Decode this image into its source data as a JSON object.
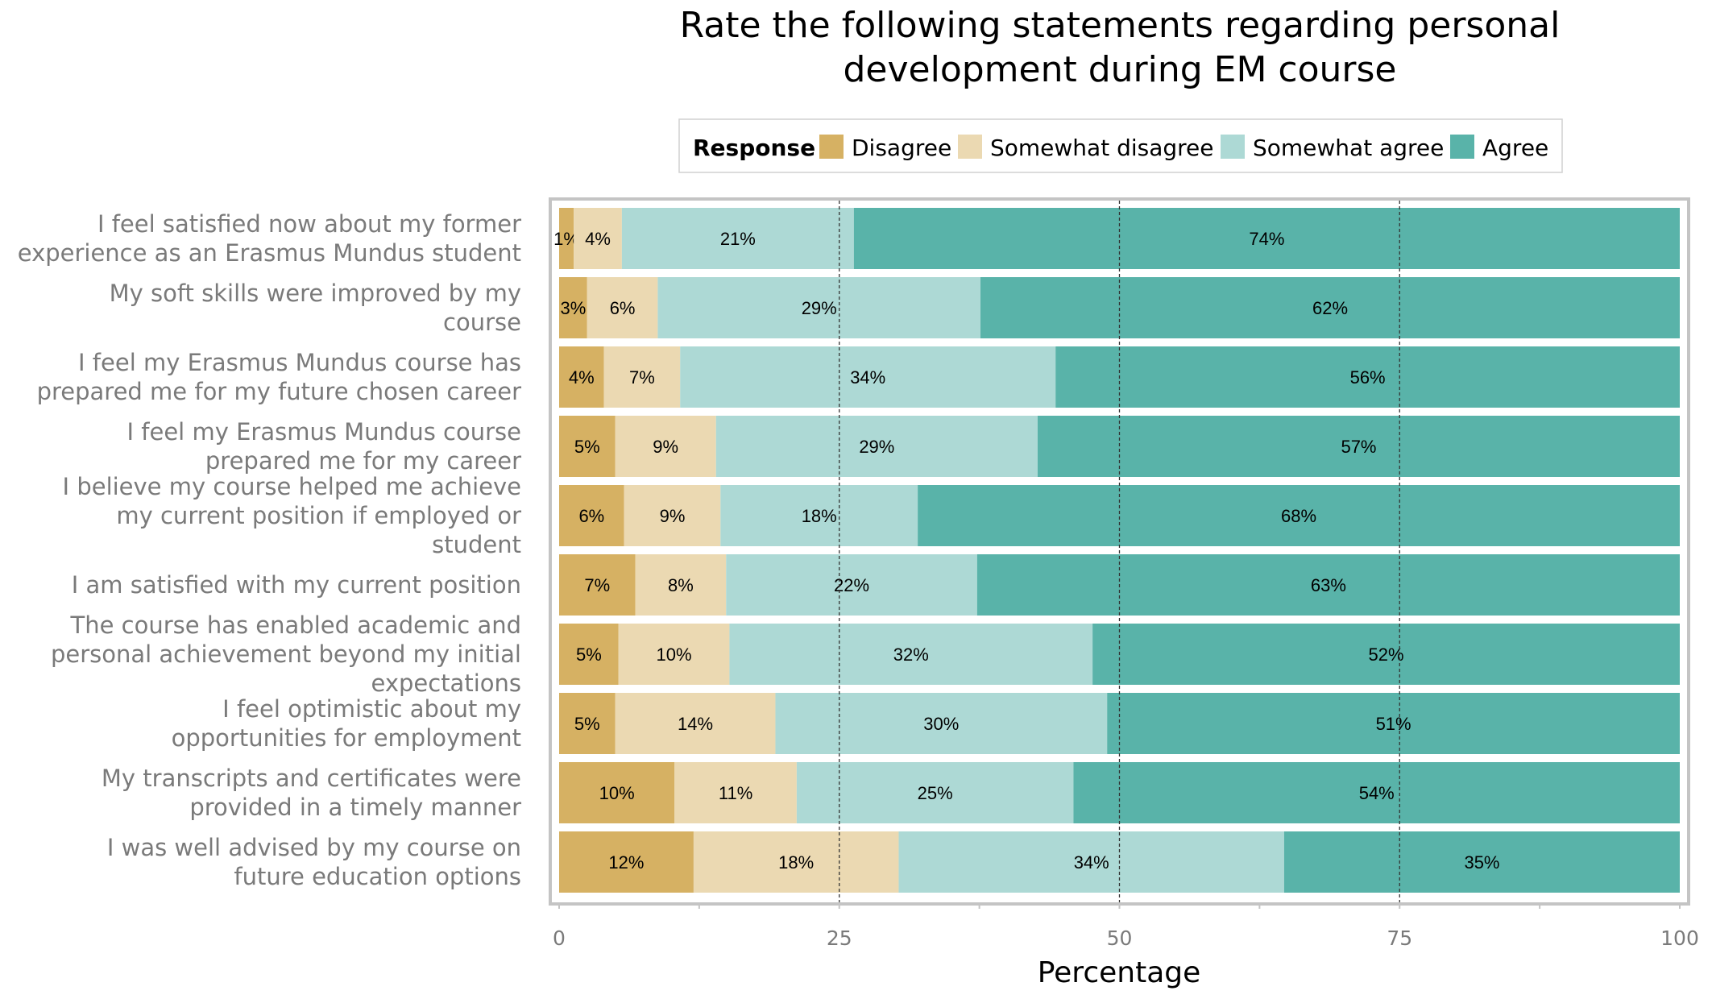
{
  "chart_data": {
    "type": "bar",
    "orientation": "horizontal",
    "stacked": true,
    "title": "Rate the following statements regarding personal development during EM course",
    "title_lines": [
      "Rate the following statements regarding personal",
      "development during EM course"
    ],
    "xlabel": "Percentage",
    "ylabel": "",
    "xlim": [
      0,
      100
    ],
    "xticks": [
      0,
      25,
      50,
      75,
      100
    ],
    "xtick_labels": [
      "0",
      "25",
      "50",
      "75",
      "100"
    ],
    "reference_lines": [
      25,
      50,
      75
    ],
    "legend": {
      "title": "Response",
      "position": "top"
    },
    "categories": [
      {
        "label": "I feel satisfied now about my former experience as an Erasmus Mundus student",
        "lines": [
          "I feel satisfied now about my former",
          "experience as an Erasmus Mundus student"
        ]
      },
      {
        "label": "My soft skills were improved by my course",
        "lines": [
          "My soft skills were improved by my",
          "course"
        ]
      },
      {
        "label": "I feel my Erasmus Mundus course has prepared me for my future chosen career",
        "lines": [
          "I feel my Erasmus Mundus course has",
          "prepared me for my future chosen career"
        ]
      },
      {
        "label": "I feel my Erasmus Mundus course prepared me for my career",
        "lines": [
          "I feel my Erasmus Mundus course",
          "prepared me for my career"
        ]
      },
      {
        "label": "I believe my course helped me achieve my current position if employed or student",
        "lines": [
          "I believe my course helped me achieve",
          "my current position if employed or",
          "student"
        ]
      },
      {
        "label": "I am satisfied with my current position",
        "lines": [
          "I am satisfied with my current position"
        ]
      },
      {
        "label": "The course has enabled academic and personal achievement beyond my initial expectations",
        "lines": [
          "The course has enabled academic and",
          "personal achievement beyond my initial",
          "expectations"
        ]
      },
      {
        "label": "I feel optimistic about my opportunities for employment",
        "lines": [
          "I feel optimistic about my",
          "opportunities for employment"
        ]
      },
      {
        "label": "My transcripts and certificates were provided in a timely manner",
        "lines": [
          "My transcripts and certificates were",
          "provided in a timely manner"
        ]
      },
      {
        "label": "I was well advised by my course on future education options",
        "lines": [
          "I was well advised by my course on",
          "future education options"
        ]
      }
    ],
    "series": [
      {
        "name": "Disagree",
        "color": "#D6B163",
        "values": [
          1.3,
          2.5,
          4,
          5,
          5.8,
          6.8,
          5.3,
          5,
          10.3,
          12
        ],
        "labels": [
          "1%",
          "3%",
          "4%",
          "5%",
          "6%",
          "7%",
          "5%",
          "5%",
          "10%",
          "12%"
        ]
      },
      {
        "name": "Somewhat disagree",
        "color": "#EBD9B2",
        "values": [
          4.3,
          6.3,
          6.8,
          9,
          8.6,
          8.1,
          9.9,
          14.3,
          10.9,
          18.3
        ],
        "labels": [
          "4%",
          "6%",
          "7%",
          "9%",
          "9%",
          "8%",
          "10%",
          "14%",
          "11%",
          "18%"
        ]
      },
      {
        "name": "Somewhat agree",
        "color": "#ADD9D5",
        "values": [
          20.7,
          28.8,
          33.5,
          28.7,
          17.6,
          22.4,
          32.4,
          29.6,
          24.7,
          34.4
        ],
        "labels": [
          "21%",
          "29%",
          "34%",
          "29%",
          "18%",
          "22%",
          "32%",
          "30%",
          "25%",
          "34%"
        ]
      },
      {
        "name": "Agree",
        "color": "#59B3A9",
        "values": [
          73.7,
          62.4,
          55.7,
          57.3,
          68,
          62.7,
          52.4,
          51.1,
          54.1,
          35.3
        ],
        "labels": [
          "74%",
          "62%",
          "56%",
          "57%",
          "68%",
          "63%",
          "52%",
          "51%",
          "54%",
          "35%"
        ]
      }
    ]
  }
}
